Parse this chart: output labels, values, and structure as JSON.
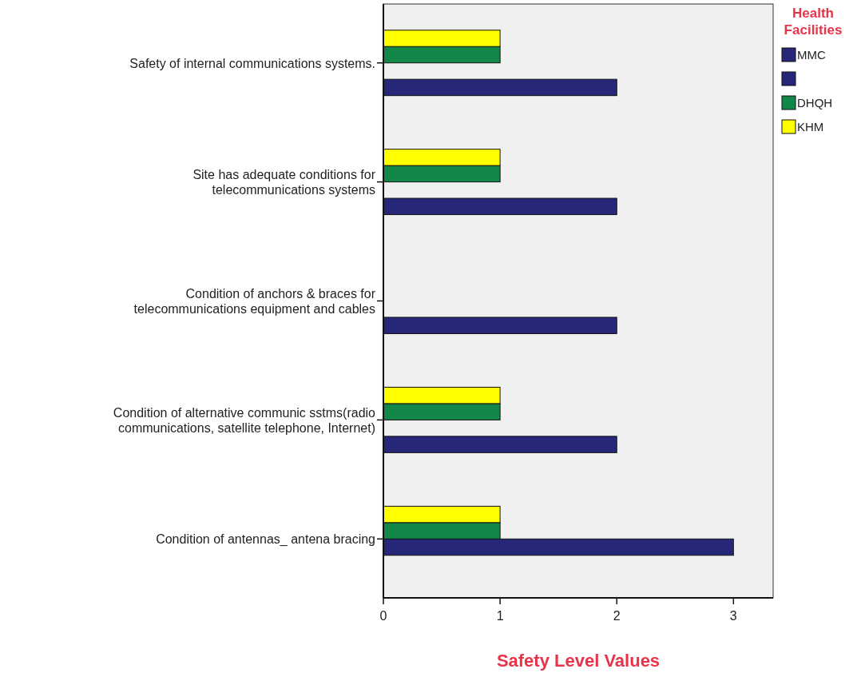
{
  "chart_data": {
    "type": "bar",
    "orientation": "horizontal",
    "xlabel": "Safety Level Values",
    "legend_title": "Health Facilities",
    "legend": "right",
    "grid": false,
    "categories": [
      "Safety of internal communications systems.",
      "Site has adequate conditions for telecommunications systems",
      "Condition of anchors & braces for telecommunications equipment and cables",
      "Condition of alternative communic sstms(radio communications, satellite telephone, Internet)",
      "Condition of antennas_ antena bracing"
    ],
    "xlim": [
      0,
      3.34
    ],
    "xticks": [
      0,
      1,
      2,
      3
    ],
    "series": [
      {
        "name": "MMC",
        "color": "#27277a",
        "values": [
          2,
          2,
          2,
          2,
          null
        ]
      },
      {
        "color": "#27277a",
        "values": [
          null,
          null,
          null,
          null,
          3
        ]
      },
      {
        "name": "DHQH",
        "color": "#13874a",
        "values": [
          1,
          1,
          null,
          1,
          1
        ]
      },
      {
        "name": "KHM",
        "color": "#ffff00",
        "values": [
          1,
          1,
          null,
          1,
          1
        ]
      }
    ]
  }
}
